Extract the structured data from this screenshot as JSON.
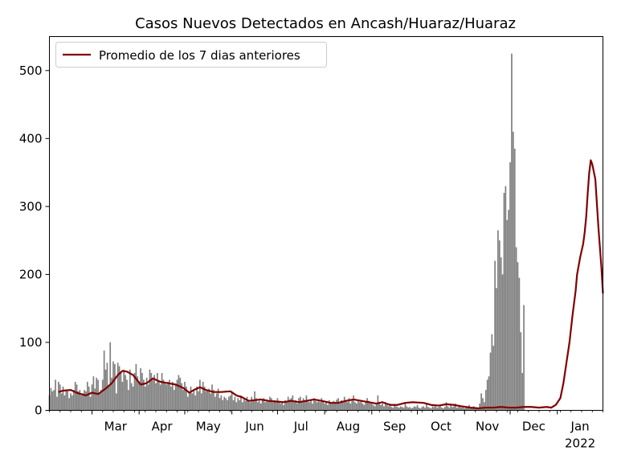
{
  "chart_data": {
    "type": "bar",
    "title": "Casos Nuevos Detectados en Ancash/Huaraz/Huaraz",
    "xlabel": "",
    "ylabel": "",
    "ylim": [
      0,
      550
    ],
    "y_ticks": [
      0,
      100,
      200,
      300,
      400,
      500
    ],
    "x_range": [
      "2021-02-01",
      "2022-01-31"
    ],
    "x_ticks": [
      {
        "date": "2021-03-01",
        "label": "Mar"
      },
      {
        "date": "2021-04-01",
        "label": "Apr"
      },
      {
        "date": "2021-05-01",
        "label": "May"
      },
      {
        "date": "2021-06-01",
        "label": "Jun"
      },
      {
        "date": "2021-07-01",
        "label": "Jul"
      },
      {
        "date": "2021-08-01",
        "label": "Aug"
      },
      {
        "date": "2021-09-01",
        "label": "Sep"
      },
      {
        "date": "2021-10-01",
        "label": "Oct"
      },
      {
        "date": "2021-11-01",
        "label": "Nov"
      },
      {
        "date": "2021-12-01",
        "label": "Dec"
      },
      {
        "date": "2022-01-01",
        "label": "Jan",
        "sublabel": "2022"
      }
    ],
    "grid": false,
    "legend_position": "top-left",
    "series": [
      {
        "kind": "bars",
        "color": "#808080",
        "start_date": "2021-02-01",
        "values": [
          22,
          33,
          28,
          30,
          45,
          20,
          42,
          38,
          25,
          35,
          22,
          30,
          28,
          18,
          25,
          22,
          30,
          42,
          38,
          28,
          30,
          22,
          25,
          30,
          28,
          42,
          35,
          20,
          38,
          50,
          32,
          48,
          45,
          25,
          30,
          45,
          88,
          60,
          70,
          35,
          100,
          48,
          72,
          68,
          25,
          70,
          65,
          55,
          42,
          60,
          52,
          45,
          30,
          60,
          40,
          35,
          55,
          68,
          50,
          42,
          62,
          55,
          45,
          35,
          48,
          38,
          60,
          55,
          45,
          52,
          40,
          55,
          42,
          38,
          55,
          45,
          40,
          38,
          42,
          45,
          35,
          42,
          30,
          38,
          45,
          52,
          48,
          40,
          30,
          42,
          35,
          20,
          28,
          35,
          25,
          30,
          22,
          35,
          28,
          45,
          25,
          42,
          35,
          28,
          30,
          32,
          25,
          38,
          30,
          20,
          25,
          32,
          18,
          22,
          15,
          20,
          18,
          15,
          20,
          22,
          28,
          15,
          20,
          12,
          18,
          15,
          22,
          12,
          18,
          14,
          20,
          15,
          12,
          20,
          15,
          28,
          18,
          12,
          14,
          10,
          15,
          18,
          12,
          16,
          14,
          20,
          18,
          12,
          15,
          12,
          18,
          14,
          10,
          12,
          8,
          15,
          12,
          20,
          16,
          18,
          22,
          12,
          15,
          10,
          18,
          20,
          12,
          18,
          15,
          22,
          14,
          12,
          16,
          10,
          18,
          14,
          12,
          15,
          12,
          18,
          14,
          10,
          12,
          8,
          15,
          12,
          10,
          14,
          12,
          16,
          18,
          10,
          15,
          12,
          20,
          14,
          12,
          18,
          10,
          15,
          22,
          12,
          10,
          16,
          12,
          15,
          10,
          8,
          12,
          18,
          14,
          10,
          12,
          8,
          6,
          10,
          22,
          12,
          8,
          10,
          6,
          12,
          8,
          6,
          10,
          5,
          4,
          8,
          6,
          5,
          4,
          6,
          5,
          4,
          10,
          6,
          4,
          5,
          3,
          4,
          6,
          5,
          8,
          4,
          3,
          5,
          6,
          4,
          10,
          5,
          4,
          3,
          6,
          5,
          8,
          4,
          5,
          6,
          4,
          3,
          5,
          12,
          6,
          4,
          8,
          5,
          6,
          10,
          4,
          5,
          6,
          4,
          5,
          3,
          6,
          4,
          8,
          5,
          4,
          6,
          5,
          3,
          4,
          10,
          25,
          18,
          12,
          30,
          45,
          50,
          85,
          112,
          95,
          220,
          180,
          265,
          250,
          225,
          200,
          320,
          330,
          280,
          295,
          365,
          525,
          410,
          385,
          240,
          218,
          195,
          115,
          55,
          155
        ]
      },
      {
        "kind": "line",
        "name": "Promedio de los 7 dias anteriores",
        "color": "#800000",
        "points": [
          [
            "2021-02-07",
            27
          ],
          [
            "2021-02-10",
            29
          ],
          [
            "2021-02-15",
            30
          ],
          [
            "2021-02-20",
            25
          ],
          [
            "2021-02-25",
            22
          ],
          [
            "2021-03-01",
            26
          ],
          [
            "2021-03-05",
            24
          ],
          [
            "2021-03-10",
            32
          ],
          [
            "2021-03-14",
            40
          ],
          [
            "2021-03-18",
            52
          ],
          [
            "2021-03-21",
            58
          ],
          [
            "2021-03-24",
            57
          ],
          [
            "2021-03-28",
            52
          ],
          [
            "2021-04-02",
            38
          ],
          [
            "2021-04-06",
            40
          ],
          [
            "2021-04-10",
            47
          ],
          [
            "2021-04-15",
            42
          ],
          [
            "2021-04-20",
            40
          ],
          [
            "2021-04-25",
            38
          ],
          [
            "2021-04-30",
            33
          ],
          [
            "2021-05-04",
            26
          ],
          [
            "2021-05-07",
            30
          ],
          [
            "2021-05-11",
            34
          ],
          [
            "2021-05-15",
            30
          ],
          [
            "2021-05-20",
            27
          ],
          [
            "2021-05-25",
            27
          ],
          [
            "2021-05-31",
            28
          ],
          [
            "2021-06-04",
            22
          ],
          [
            "2021-06-08",
            19
          ],
          [
            "2021-06-12",
            14
          ],
          [
            "2021-06-16",
            15
          ],
          [
            "2021-06-20",
            16
          ],
          [
            "2021-06-25",
            14
          ],
          [
            "2021-06-30",
            13
          ],
          [
            "2021-07-05",
            12
          ],
          [
            "2021-07-10",
            14
          ],
          [
            "2021-07-15",
            12
          ],
          [
            "2021-07-20",
            14
          ],
          [
            "2021-07-25",
            16
          ],
          [
            "2021-07-30",
            14
          ],
          [
            "2021-08-05",
            11
          ],
          [
            "2021-08-10",
            11
          ],
          [
            "2021-08-15",
            14
          ],
          [
            "2021-08-20",
            16
          ],
          [
            "2021-08-25",
            14
          ],
          [
            "2021-08-30",
            12
          ],
          [
            "2021-09-04",
            10
          ],
          [
            "2021-09-08",
            12
          ],
          [
            "2021-09-13",
            8
          ],
          [
            "2021-09-18",
            8
          ],
          [
            "2021-09-23",
            11
          ],
          [
            "2021-09-28",
            12
          ],
          [
            "2021-10-05",
            11
          ],
          [
            "2021-10-10",
            8
          ],
          [
            "2021-10-15",
            7
          ],
          [
            "2021-10-20",
            9
          ],
          [
            "2021-10-25",
            8
          ],
          [
            "2021-10-30",
            6
          ],
          [
            "2021-11-05",
            4
          ],
          [
            "2021-11-10",
            3
          ],
          [
            "2021-11-15",
            4
          ],
          [
            "2021-11-20",
            4
          ],
          [
            "2021-11-25",
            5
          ],
          [
            "2021-11-30",
            4
          ],
          [
            "2021-12-05",
            4
          ],
          [
            "2021-12-10",
            5
          ],
          [
            "2021-12-15",
            5
          ],
          [
            "2021-12-20",
            4
          ],
          [
            "2021-12-25",
            5
          ],
          [
            "2021-12-28",
            4
          ],
          [
            "2021-12-31",
            8
          ],
          [
            "2022-01-03",
            18
          ],
          [
            "2022-01-05",
            40
          ],
          [
            "2022-01-07",
            70
          ],
          [
            "2022-01-09",
            100
          ],
          [
            "2022-01-11",
            140
          ],
          [
            "2022-01-13",
            175
          ],
          [
            "2022-01-14",
            200
          ],
          [
            "2022-01-16",
            225
          ],
          [
            "2022-01-18",
            245
          ],
          [
            "2022-01-19",
            262
          ],
          [
            "2022-01-20",
            285
          ],
          [
            "2022-01-21",
            320
          ],
          [
            "2022-01-22",
            350
          ],
          [
            "2022-01-23",
            368
          ],
          [
            "2022-01-24",
            362
          ],
          [
            "2022-01-26",
            340
          ],
          [
            "2022-01-28",
            270
          ],
          [
            "2022-01-30",
            210
          ],
          [
            "2022-01-31",
            172
          ]
        ]
      }
    ]
  }
}
